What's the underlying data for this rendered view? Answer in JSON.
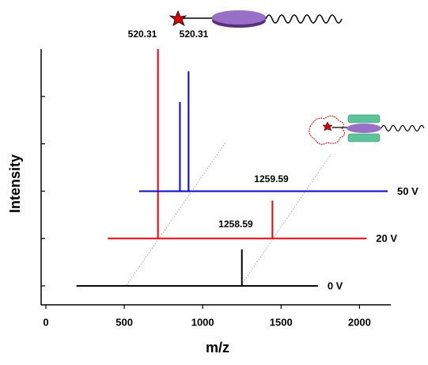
{
  "chart_data": {
    "type": "line",
    "x_label": "m/z",
    "y_label": "Intensity",
    "xlim": [
      0,
      2200
    ],
    "xticks": [
      0,
      500,
      1000,
      1500,
      2000
    ],
    "ylim": [
      0.6,
      6.0
    ],
    "yticks": [
      1,
      2,
      3,
      4,
      5
    ],
    "series": [
      {
        "name": "0 V",
        "color": "#000000",
        "x": [
          195,
          1250,
          1250,
          1250,
          1735
        ],
        "values": [
          1,
          1,
          1.77,
          1,
          1
        ]
      },
      {
        "name": "20 V",
        "color": "#ff0000",
        "x": [
          395,
          715,
          715,
          715,
          1445,
          1445,
          1445,
          2045
        ],
        "values": [
          2,
          2,
          6.0,
          2,
          2,
          2.8,
          2,
          2
        ]
      },
      {
        "name": "50 V",
        "color": "#0000ff",
        "x": [
          595,
          855,
          855,
          855,
          910,
          910,
          910,
          2180
        ],
        "values": [
          3,
          3,
          4.88,
          3,
          3,
          5.53,
          3,
          3
        ]
      }
    ],
    "annotations": [
      "520.31",
      "520.31",
      "1258.59",
      "1259.59"
    ]
  }
}
